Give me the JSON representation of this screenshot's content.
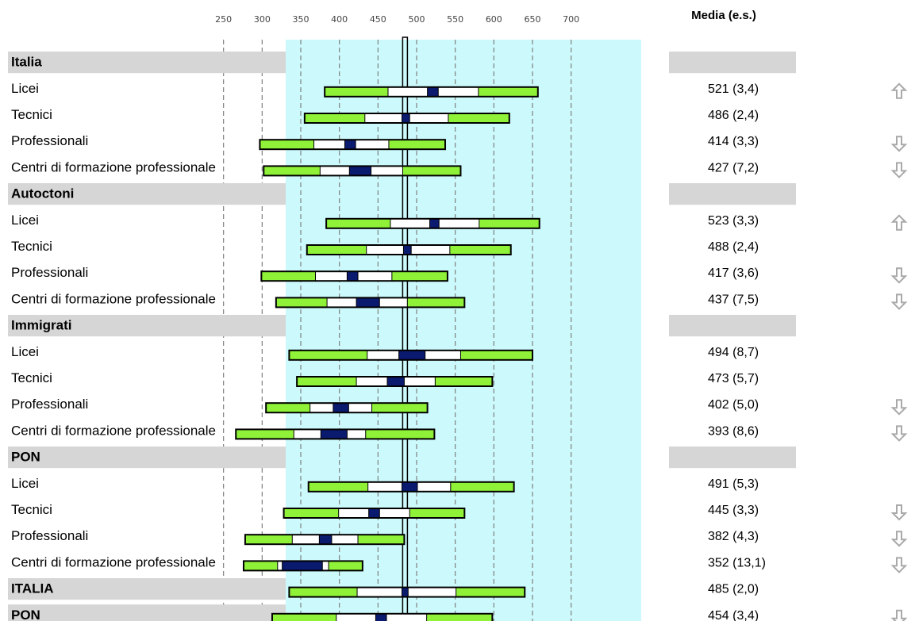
{
  "chart_data": {
    "type": "percentile-range",
    "header_right": "Media (e.s.)",
    "x_ticks": [
      250,
      300,
      350,
      400,
      450,
      500,
      550,
      600,
      650,
      700
    ],
    "xlim": [
      250,
      700
    ],
    "reference_value": 485,
    "colors": {
      "panel": "#ccf9fb",
      "grid": "#808080",
      "outer_band": "#8ff238",
      "inner_band": "#ffffff",
      "ci_band": "#0a1a6e",
      "group_bg": "#d6d6d6",
      "arrow": "#a9a9a9"
    },
    "rows": [
      {
        "label": "Italia",
        "kind": "group"
      },
      {
        "label": "Licei",
        "kind": "item",
        "value": "521 (3,4)",
        "p5": 381,
        "p25": 463,
        "ci_low": 514,
        "ci_high": 528,
        "p75": 580,
        "p95": 657,
        "trend": "up"
      },
      {
        "label": "Tecnici",
        "kind": "item",
        "value": "486 (2,4)",
        "p5": 355,
        "p25": 433,
        "ci_low": 481,
        "ci_high": 491,
        "p75": 541,
        "p95": 620,
        "trend": ""
      },
      {
        "label": "Professionali",
        "kind": "item",
        "value": "414 (3,3)",
        "p5": 297,
        "p25": 367,
        "ci_low": 407,
        "ci_high": 421,
        "p75": 464,
        "p95": 537,
        "trend": "down"
      },
      {
        "label": "Centri di formazione professionale",
        "kind": "item",
        "value": "427 (7,2)",
        "p5": 302,
        "p25": 375,
        "ci_low": 413,
        "ci_high": 441,
        "p75": 482,
        "p95": 557,
        "trend": "down"
      },
      {
        "label": "Autoctoni",
        "kind": "group"
      },
      {
        "label": "Licei",
        "kind": "item",
        "value": "523 (3,3)",
        "p5": 383,
        "p25": 466,
        "ci_low": 517,
        "ci_high": 529,
        "p75": 581,
        "p95": 659,
        "trend": "up"
      },
      {
        "label": "Tecnici",
        "kind": "item",
        "value": "488 (2,4)",
        "p5": 358,
        "p25": 435,
        "ci_low": 483,
        "ci_high": 493,
        "p75": 543,
        "p95": 622,
        "trend": ""
      },
      {
        "label": "Professionali",
        "kind": "item",
        "value": "417 (3,6)",
        "p5": 299,
        "p25": 369,
        "ci_low": 410,
        "ci_high": 424,
        "p75": 468,
        "p95": 540,
        "trend": "down"
      },
      {
        "label": "Centri di formazione professionale",
        "kind": "item",
        "value": "437 (7,5)",
        "p5": 318,
        "p25": 384,
        "ci_low": 422,
        "ci_high": 452,
        "p75": 488,
        "p95": 562,
        "trend": "down"
      },
      {
        "label": "Immigrati",
        "kind": "group"
      },
      {
        "label": "Licei",
        "kind": "item",
        "value": "494 (8,7)",
        "p5": 335,
        "p25": 436,
        "ci_low": 477,
        "ci_high": 511,
        "p75": 557,
        "p95": 650,
        "trend": ""
      },
      {
        "label": "Tecnici",
        "kind": "item",
        "value": "473 (5,7)",
        "p5": 345,
        "p25": 422,
        "ci_low": 462,
        "ci_high": 484,
        "p75": 524,
        "p95": 598,
        "trend": ""
      },
      {
        "label": "Professionali",
        "kind": "item",
        "value": "402 (5,0)",
        "p5": 305,
        "p25": 362,
        "ci_low": 392,
        "ci_high": 412,
        "p75": 442,
        "p95": 514,
        "trend": "down"
      },
      {
        "label": "Centri di formazione professionale",
        "kind": "item",
        "value": "393 (8,6)",
        "p5": 266,
        "p25": 341,
        "ci_low": 376,
        "ci_high": 410,
        "p75": 434,
        "p95": 523,
        "trend": "down"
      },
      {
        "label": "PON",
        "kind": "group"
      },
      {
        "label": "Licei",
        "kind": "item",
        "value": "491 (5,3)",
        "p5": 360,
        "p25": 437,
        "ci_low": 481,
        "ci_high": 501,
        "p75": 544,
        "p95": 626,
        "trend": ""
      },
      {
        "label": "Tecnici",
        "kind": "item",
        "value": "445 (3,3)",
        "p5": 328,
        "p25": 399,
        "ci_low": 438,
        "ci_high": 452,
        "p75": 491,
        "p95": 562,
        "trend": "down"
      },
      {
        "label": "Professionali",
        "kind": "item",
        "value": "382 (4,3)",
        "p5": 278,
        "p25": 339,
        "ci_low": 374,
        "ci_high": 390,
        "p75": 424,
        "p95": 484,
        "trend": "down"
      },
      {
        "label": "Centri di formazione professionale",
        "kind": "item",
        "value": "352 (13,1)",
        "p5": 276,
        "p25": 320,
        "ci_low": 326,
        "ci_high": 378,
        "p75": 386,
        "p95": 430,
        "trend": "down"
      },
      {
        "label": "ITALIA",
        "kind": "total",
        "value": "485 (2,0)",
        "p5": 335,
        "p25": 423,
        "ci_low": 481,
        "ci_high": 489,
        "p75": 551,
        "p95": 640,
        "trend": ""
      },
      {
        "label": "PON",
        "kind": "total",
        "value": "454 (3,4)",
        "p5": 313,
        "p25": 396,
        "ci_low": 447,
        "ci_high": 461,
        "p75": 513,
        "p95": 598,
        "trend": "down"
      }
    ]
  }
}
